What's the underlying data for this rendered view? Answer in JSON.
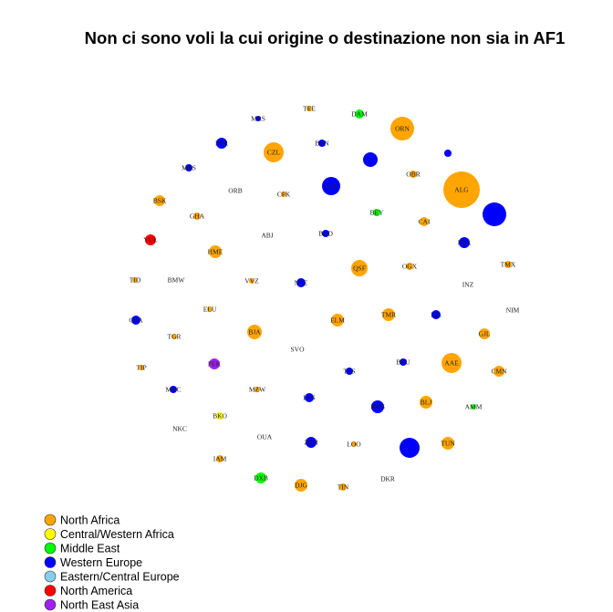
{
  "title": "Non ci sono voli la cui origine o destinazione non sia in AF1",
  "regions": [
    {
      "key": "north_africa",
      "label": "North Africa",
      "color": "#FFA500"
    },
    {
      "key": "central_western_africa",
      "label": "Central/Western Africa",
      "color": "#FFFF00"
    },
    {
      "key": "middle_east",
      "label": "Middle East",
      "color": "#00FF00"
    },
    {
      "key": "western_europe",
      "label": "Western Europe",
      "color": "#0000FF"
    },
    {
      "key": "eastern_central_europe",
      "label": "Eastern/Central Europe",
      "color": "#87CEEB"
    },
    {
      "key": "north_america",
      "label": "North America",
      "color": "#FF0000"
    },
    {
      "key": "north_east_asia",
      "label": "North East Asia",
      "color": "#A020F0"
    }
  ],
  "airports": [
    {
      "code": "MRS",
      "region": "western_europe"
    },
    {
      "code": "TEE",
      "region": "north_africa"
    },
    {
      "code": "DAM",
      "region": "middle_east"
    },
    {
      "code": "ORN",
      "region": "north_africa"
    },
    {
      "code": "BRU",
      "region": "western_europe"
    },
    {
      "code": "CZL",
      "region": "north_africa"
    },
    {
      "code": "PAR",
      "region": "western_europe"
    },
    {
      "code": "PAR2",
      "region": "western_europe"
    },
    {
      "code": "BCN",
      "region": "western_europe"
    },
    {
      "code": "MRS2",
      "region": "western_europe"
    },
    {
      "code": "ORB",
      "region": "western_europe"
    },
    {
      "code": "CFK",
      "region": "north_africa"
    },
    {
      "code": "LYS",
      "region": "western_europe"
    },
    {
      "code": "OBR",
      "region": "north_africa"
    },
    {
      "code": "ALG",
      "region": "north_africa"
    },
    {
      "code": "BSK",
      "region": "north_africa"
    },
    {
      "code": "BEY",
      "region": "middle_east"
    },
    {
      "code": "CAI",
      "region": "north_africa"
    },
    {
      "code": "PAR3",
      "region": "western_europe"
    },
    {
      "code": "GHA",
      "region": "north_africa"
    },
    {
      "code": "ABJ",
      "region": "central_western_africa"
    },
    {
      "code": "BOD",
      "region": "western_europe"
    },
    {
      "code": "YUL",
      "region": "north_america"
    },
    {
      "code": "FRA",
      "region": "western_europe"
    },
    {
      "code": "HME",
      "region": "north_africa"
    },
    {
      "code": "QSF",
      "region": "north_africa"
    },
    {
      "code": "OGX",
      "region": "north_africa"
    },
    {
      "code": "TMX",
      "region": "north_africa"
    },
    {
      "code": "TID",
      "region": "north_africa"
    },
    {
      "code": "BMW",
      "region": "north_africa"
    },
    {
      "code": "VVZ",
      "region": "north_africa"
    },
    {
      "code": "NCE",
      "region": "western_europe"
    },
    {
      "code": "INZ",
      "region": "north_africa"
    },
    {
      "code": "ELU",
      "region": "north_africa"
    },
    {
      "code": "NIM",
      "region": "central_western_africa"
    },
    {
      "code": "GVA",
      "region": "western_europe"
    },
    {
      "code": "ELM",
      "region": "north_africa"
    },
    {
      "code": "TMR",
      "region": "north_africa"
    },
    {
      "code": "LIL",
      "region": "western_europe"
    },
    {
      "code": "TGR",
      "region": "north_africa"
    },
    {
      "code": "BJA",
      "region": "north_africa"
    },
    {
      "code": "GJL",
      "region": "north_africa"
    },
    {
      "code": "SVO",
      "region": "eastern_central_europe"
    },
    {
      "code": "TIP",
      "region": "north_africa"
    },
    {
      "code": "PEK",
      "region": "north_east_asia"
    },
    {
      "code": "TLS",
      "region": "western_europe"
    },
    {
      "code": "BRU2",
      "region": "western_europe"
    },
    {
      "code": "AAE",
      "region": "north_africa"
    },
    {
      "code": "CMN",
      "region": "north_africa"
    },
    {
      "code": "MUC",
      "region": "western_europe"
    },
    {
      "code": "MZW",
      "region": "north_africa"
    },
    {
      "code": "LYS2",
      "region": "western_europe"
    },
    {
      "code": "BLJ",
      "region": "north_africa"
    },
    {
      "code": "AMM",
      "region": "middle_east"
    },
    {
      "code": "MRS3",
      "region": "western_europe"
    },
    {
      "code": "BKO",
      "region": "central_western_africa"
    },
    {
      "code": "NKC",
      "region": "central_western_africa"
    },
    {
      "code": "OUA",
      "region": "central_western_africa"
    },
    {
      "code": "ZRH",
      "region": "western_europe"
    },
    {
      "code": "LOO",
      "region": "north_africa"
    },
    {
      "code": "PAR4",
      "region": "western_europe"
    },
    {
      "code": "TUN",
      "region": "north_africa"
    },
    {
      "code": "IAM",
      "region": "north_africa"
    },
    {
      "code": "DXB",
      "region": "middle_east"
    },
    {
      "code": "DJG",
      "region": "north_africa"
    },
    {
      "code": "TIN",
      "region": "north_africa"
    },
    {
      "code": "DKR",
      "region": "central_western_africa"
    }
  ],
  "node_labels": {
    "MRS": "MRS",
    "TEE": "TEE",
    "DAM": "DAM",
    "ORN": "ORN",
    "BRU": "",
    "CZL": "CZL",
    "PAR": "PAR",
    "PAR2": "",
    "BCN": "BCN",
    "MRS2": "MRS",
    "ORB": "ORB",
    "CFK": "CFK",
    "LYS": "LYS",
    "OBR": "OBR",
    "ALG": "ALG",
    "BSK": "BSK",
    "BEY": "BEY",
    "CAI": "CAI",
    "PAR3": "",
    "GHA": "GHA",
    "ABJ": "ABJ",
    "BOD": "BOD",
    "YUL": "YUL",
    "FRA": "FRA",
    "HME": "HME",
    "QSF": "QSF",
    "OGX": "OGX",
    "TMX": "TMX",
    "TID": "TID",
    "BMW": "BMW",
    "VVZ": "VVZ",
    "NCE": "NCE",
    "INZ": "INZ",
    "ELU": "ELU",
    "NIM": "NIM",
    "GVA": "GVA",
    "ELM": "ELM",
    "TMR": "TMR",
    "LIL": "LIL",
    "TGR": "TGR",
    "BJA": "BJA",
    "GJL": "GJL",
    "SVO": "SVO",
    "TIP": "TIP",
    "PEK": "PEK",
    "TLS": "TLS",
    "BRU2": "BRU",
    "AAE": "AAE",
    "CMN": "CMN",
    "MUC": "MUC",
    "MZW": "MZW",
    "LYS2": "LYS",
    "BLJ": "BLJ",
    "AMM": "AMM",
    "MRS3": "MRS",
    "BKO": "BKO",
    "NKC": "NKC",
    "OUA": "OUA",
    "ZRH": "ZRH",
    "LOO": "LOO",
    "PAR4": "",
    "TUN": "TUN",
    "IAM": "IAM",
    "DXB": "DXB",
    "DJG": "DJG",
    "TIN": "TIN",
    "DKR": "DKR"
  }
}
